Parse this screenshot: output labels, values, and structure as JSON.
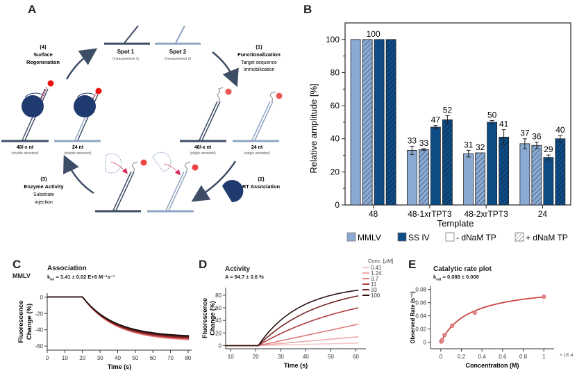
{
  "panels": {
    "A": {
      "letter": "A",
      "spot1": {
        "title": "Spot 1",
        "sub": "(measurement 1)"
      },
      "spot2": {
        "title": "Spot 2",
        "sub": "(measurement 2)"
      },
      "step1": {
        "num": "(1)",
        "title": "Functionalization",
        "line1": "Target sequence",
        "line2": "Immobilization"
      },
      "step2": {
        "num": "(2)",
        "title": "RT Association"
      },
      "step3": {
        "num": "(3)",
        "title": "Enzyme Activity",
        "line1": "Substrate",
        "line2": "injection"
      },
      "step4": {
        "num": "(4)",
        "title": "Surface",
        "title2": "Regeneration"
      },
      "labels": {
        "ds48": {
          "title": "48/-x nt",
          "sub": "(double stranded)"
        },
        "ds24": {
          "title": "24 nt",
          "sub": "(double stranded)"
        },
        "ss48": {
          "title": "48/-x nt",
          "sub": "(single stranded)"
        },
        "ss24": {
          "title": "24 nt",
          "sub": "(single stranded)"
        }
      },
      "colors": {
        "dark": "#3d4d66",
        "light": "#8fa5c4",
        "enzyme": "#1f3a6e",
        "fluor": "#ee3333"
      }
    },
    "B": {
      "letter": "B"
    },
    "C": {
      "letter": "C",
      "enzyme": "MMLV",
      "title": "Association",
      "kon_label": "k",
      "kon_sub": "on",
      "kon_value": " = 3.41 ± 0.02 E+6 M⁻¹s⁻¹"
    },
    "D": {
      "letter": "D",
      "title": "Activity",
      "amp": "A = 94.7 ± 0.6 %"
    },
    "E": {
      "letter": "E",
      "title": "Catalytic rate plot",
      "kcat_label": "k",
      "kcat_sub": "cat",
      "kcat_value": " = 0.088 ± 0.008"
    }
  },
  "chart_data": [
    {
      "id": "B",
      "type": "bar",
      "title": "",
      "xlabel": "Template",
      "ylabel": "Relative amplitude [%]",
      "ylim": [
        0,
        110
      ],
      "yticks": [
        0,
        20,
        40,
        60,
        80,
        100
      ],
      "categories": [
        "48",
        "48-1xrTPT3",
        "48-2xrTPT3",
        "24"
      ],
      "series": [
        {
          "name": "MMLV - dNaM TP",
          "color": "#8aaad3",
          "hatch": false,
          "values": [
            100,
            33,
            31,
            37
          ],
          "errors": [
            0,
            2.5,
            2,
            3
          ],
          "labels": [
            "100",
            "33",
            "31",
            "37"
          ]
        },
        {
          "name": "MMLV + dNaM TP",
          "color": "#8aaad3",
          "hatch": true,
          "values": [
            100,
            33.5,
            31.5,
            36
          ],
          "errors": [
            0,
            0.5,
            0,
            2
          ],
          "labels": [
            "",
            "33",
            "32",
            "36"
          ]
        },
        {
          "name": "SS IV - dNaM TP",
          "color": "#0e4c86",
          "hatch": false,
          "values": [
            100,
            47,
            50,
            28.7
          ],
          "errors": [
            0,
            1,
            1,
            1.5
          ],
          "labels": [
            "",
            "47",
            "50",
            "29"
          ]
        },
        {
          "name": "SS IV + dNaM TP",
          "color": "#0e4c86",
          "hatch": true,
          "values": [
            100,
            51.5,
            41,
            40
          ],
          "errors": [
            0,
            2.5,
            4.5,
            2
          ],
          "labels": [
            "",
            "52",
            "41",
            "40"
          ]
        }
      ],
      "legend": [
        {
          "label": "MMLV",
          "swatch": "#8aaad3",
          "hatch": false
        },
        {
          "label": "SS IV",
          "swatch": "#0e4c86",
          "hatch": false
        },
        {
          "label": "- dNaM TP",
          "swatch": "#ffffff",
          "hatch": false
        },
        {
          "label": "+ dNaM TP",
          "swatch": "#ffffff",
          "hatch": true
        }
      ],
      "legend_position": "bottom"
    },
    {
      "id": "C",
      "type": "line",
      "xlabel": "Time (s)",
      "ylabel": "Fluorescence Change (%)",
      "xlim": [
        0,
        82
      ],
      "ylim": [
        -65,
        5
      ],
      "xticks": [
        0,
        10,
        20,
        30,
        40,
        50,
        60,
        70,
        80
      ],
      "yticks": [
        0,
        -20,
        -40,
        -60
      ],
      "model": {
        "baseline_until": 20,
        "plateaus": [
          -49,
          -50,
          -51,
          -52,
          -53,
          -54
        ],
        "tau": 18
      },
      "colors": [
        "#1a0a0a",
        "#4a1414",
        "#7a2222",
        "#a83333",
        "#d05555",
        "#e88888"
      ]
    },
    {
      "id": "D",
      "type": "line",
      "xlabel": "Time (s)",
      "ylabel": "Fluorescence Change (%)",
      "xlim": [
        8,
        64
      ],
      "ylim": [
        -5,
        92
      ],
      "xticks": [
        10,
        20,
        30,
        40,
        50,
        60
      ],
      "yticks": [
        0,
        20,
        40,
        60,
        80
      ],
      "legend_title": "Conc. [µM]",
      "series": [
        {
          "name": "0.41",
          "color": "#f4c8c8",
          "start": 20,
          "end_value": 4,
          "shape": "linear"
        },
        {
          "name": "1.24",
          "color": "#eeaaaa",
          "start": 20,
          "end_value": 14,
          "shape": "linear"
        },
        {
          "name": "3.7",
          "color": "#e07a7a",
          "start": 21,
          "end_value": 34,
          "shape": "linear"
        },
        {
          "name": "11",
          "color": "#b03a3a",
          "start": 21,
          "end_value": 60,
          "shape": "curve",
          "k": 0.025
        },
        {
          "name": "33",
          "color": "#7a2626",
          "start": 21,
          "end_value": 79,
          "shape": "curve",
          "k": 0.04
        },
        {
          "name": "100",
          "color": "#2a1010",
          "start": 21,
          "end_value": 88,
          "shape": "curve",
          "k": 0.06
        }
      ]
    },
    {
      "id": "E",
      "type": "scatter",
      "xlabel": "Concentration (M)",
      "ylabel": "Observed Rate (s⁻¹)",
      "x_multiplier_label": "× 1E-4",
      "xlim": [
        -0.1,
        1.1
      ],
      "ylim": [
        -0.01,
        0.085
      ],
      "xticks": [
        0,
        0.2,
        0.4,
        0.6,
        0.8,
        1
      ],
      "yticks": [
        0,
        0.02,
        0.04,
        0.06,
        0.08
      ],
      "points": [
        {
          "x": 0.0041,
          "y": 0.001
        },
        {
          "x": 0.0124,
          "y": 0.003
        },
        {
          "x": 0.037,
          "y": 0.011
        },
        {
          "x": 0.11,
          "y": 0.025
        },
        {
          "x": 0.33,
          "y": 0.045
        },
        {
          "x": 1.0,
          "y": 0.069
        }
      ],
      "fit": {
        "vmax": 0.088,
        "km": 0.28
      },
      "color": "#cc4444"
    }
  ]
}
